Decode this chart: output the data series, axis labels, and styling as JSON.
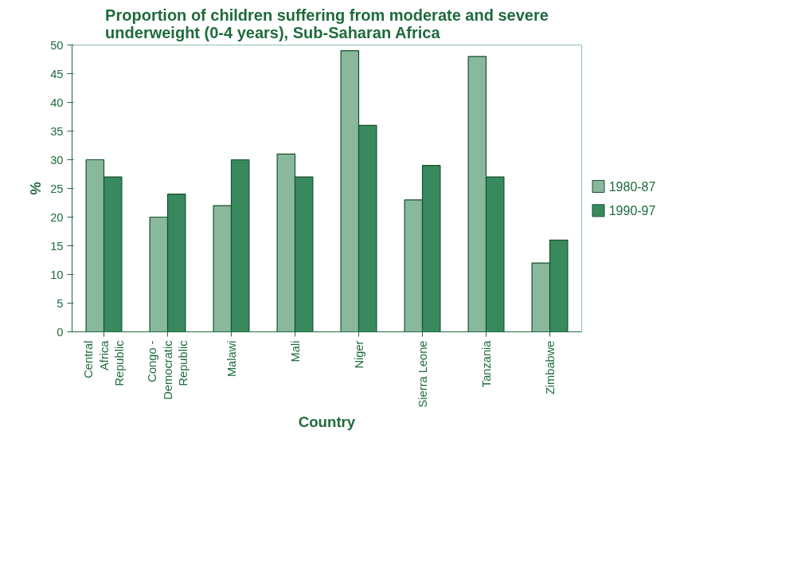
{
  "chart_data": {
    "type": "bar",
    "title": "Proportion of children suffering from moderate and severe underweight (0-4 years), Sub-Saharan Africa",
    "xlabel": "Country",
    "ylabel": "%",
    "categories": [
      "Central Africa Republic",
      "Congo - Democratic Republic",
      "Malawi",
      "Mali",
      "Niger",
      "Sierra Leone",
      "Tanzania",
      "Zimbabwe"
    ],
    "series": [
      {
        "name": "1980-87",
        "color": "#8ab89c",
        "values": [
          30,
          20,
          22,
          31,
          49,
          23,
          48,
          12
        ]
      },
      {
        "name": "1990-97",
        "color": "#388a5e",
        "values": [
          27,
          24,
          30,
          27,
          36,
          29,
          27,
          16
        ]
      }
    ],
    "ylim": [
      0,
      50
    ],
    "yticks": [
      0,
      5,
      10,
      15,
      20,
      25,
      30,
      35,
      40,
      45,
      50
    ],
    "grid": false,
    "legend": "right"
  }
}
